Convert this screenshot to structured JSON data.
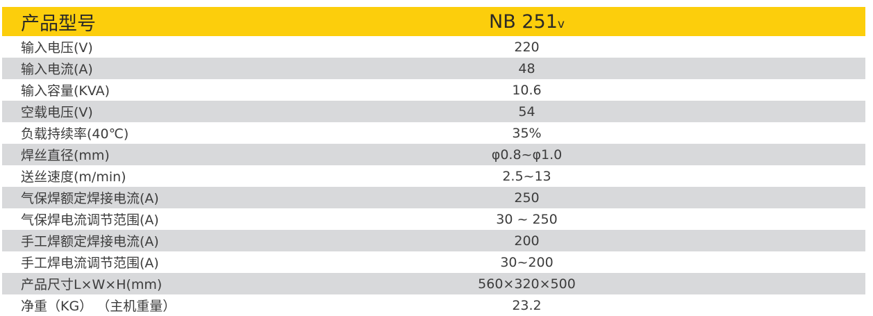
{
  "table": {
    "header": {
      "label": "产品型号",
      "model_prefix": "NB 251",
      "model_suffix": "v"
    },
    "rows": [
      {
        "label": "输入电压(V)",
        "value": "220"
      },
      {
        "label": "输入电流(A)",
        "value": "48"
      },
      {
        "label": "输入容量(KVA)",
        "value": "10.6"
      },
      {
        "label": "空载电压(V)",
        "value": "54"
      },
      {
        "label": "负载持续率(40℃)",
        "value": "35%"
      },
      {
        "label": "焊丝直径(mm)",
        "value": "φ0.8~φ1.0"
      },
      {
        "label": "送丝速度(m/min)",
        "value": "2.5~13"
      },
      {
        "label": "气保焊额定焊接电流(A)",
        "value": "250"
      },
      {
        "label": "气保焊电流调节范围(A)",
        "value": "30 ~ 250"
      },
      {
        "label": "手工焊额定焊接电流(A)",
        "value": "200"
      },
      {
        "label": "手工焊电流调节范围(A)",
        "value": "30~200"
      },
      {
        "label": "产品尺寸L×W×H(mm)",
        "value": "560×320×500"
      },
      {
        "label": "净重（KG） （主机重量）",
        "value": "23.2"
      }
    ],
    "colors": {
      "header_bg": "#FCCE0C",
      "alt_row_bg": "#D8D9DB",
      "body_text": "#3C3C3C",
      "header_text": "#2B2A27"
    }
  }
}
